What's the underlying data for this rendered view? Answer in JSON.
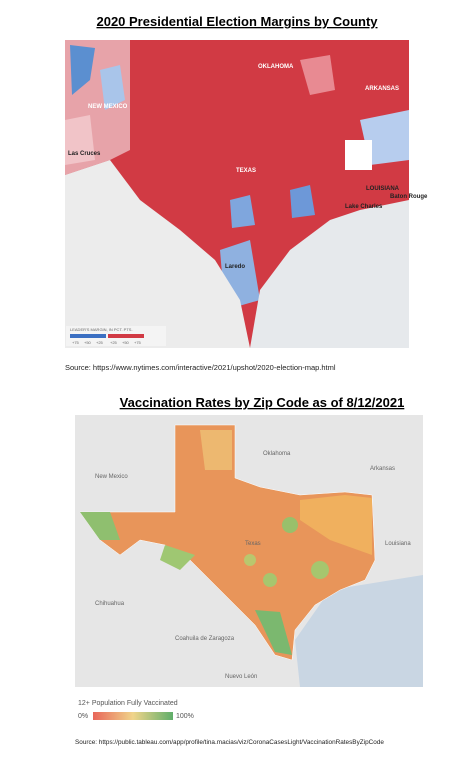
{
  "election_map": {
    "title": "2020 Presidential Election Margins by County",
    "labels": [
      "OKLAHOMA",
      "ARKANSAS",
      "NEW MEXICO",
      "TEXAS",
      "LOUISIANA",
      "Las Cruces",
      "Lake Charles",
      "Baton Rouge",
      "Laredo"
    ],
    "legend": {
      "title": "LEADER'S MARGIN, IN PCT. PTS.",
      "blue_ticks": [
        "+75",
        "+50",
        "+25"
      ],
      "red_ticks": [
        "+25",
        "+50",
        "+75"
      ]
    },
    "source": "Source: https://www.nytimes.com/interactive/2021/upshot/2020-election-map.html"
  },
  "vaccination_map": {
    "title": "Vaccination Rates by Zip Code as of 8/12/2021",
    "labels": [
      "New Mexico",
      "Oklahoma",
      "Arkansas",
      "Texas",
      "Louisiana",
      "Chihuahua",
      "Coahuila de Zaragoza",
      "Nuevo León"
    ],
    "legend": {
      "title": "12+ Population Fully Vaccinated",
      "min": "0%",
      "max": "100%"
    },
    "source": "Source: https://public.tableau.com/app/profile/tina.macias/viz/CoronaCasesLight/VaccinationRatesByZipCode"
  }
}
